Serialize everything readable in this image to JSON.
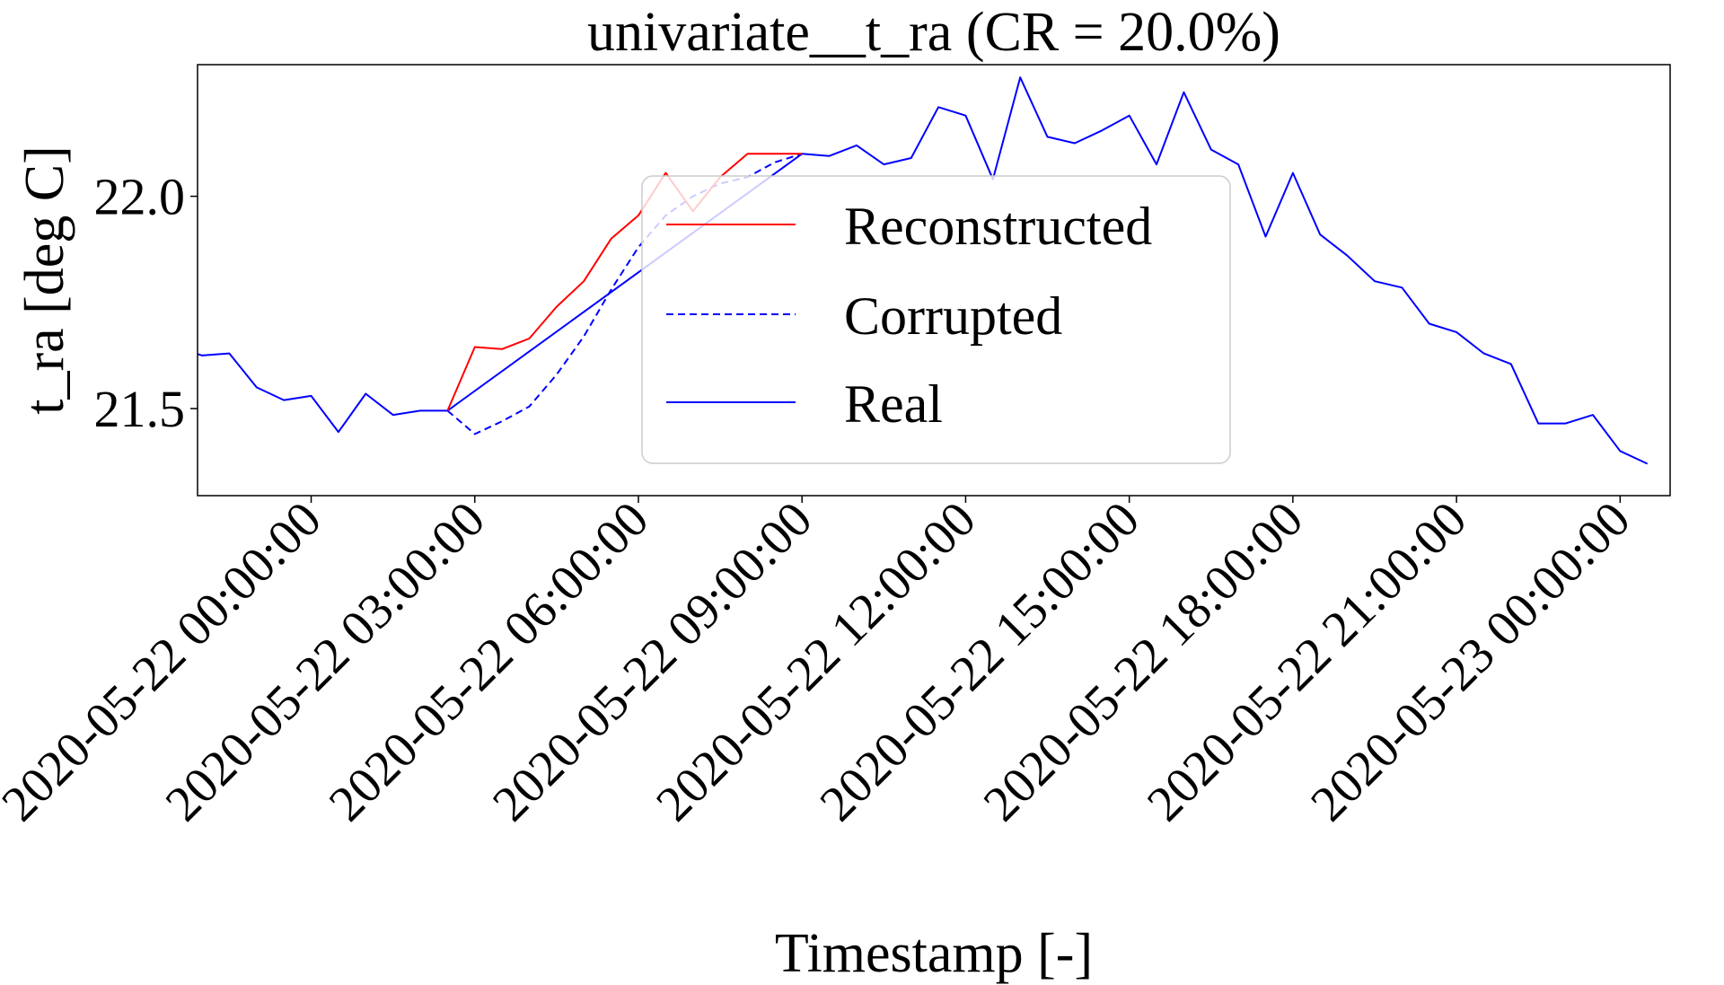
{
  "chart_data": {
    "type": "line",
    "title": "univariate__t_ra  (CR = 20.0%)",
    "xlabel": "Timestamp [-]",
    "ylabel": "t_ra  [deg C]",
    "xlim": [
      "2020-05-21 21:55:00",
      "2020-05-23 00:55:00"
    ],
    "ylim": [
      21.295,
      22.31
    ],
    "x_ticks": [
      "2020-05-22 00:00:00",
      "2020-05-22 03:00:00",
      "2020-05-22 06:00:00",
      "2020-05-22 09:00:00",
      "2020-05-22 12:00:00",
      "2020-05-22 15:00:00",
      "2020-05-22 18:00:00",
      "2020-05-22 21:00:00",
      "2020-05-23 00:00:00"
    ],
    "y_ticks": [
      21.5,
      22.0
    ],
    "y_tick_labels": [
      "21.5",
      "22.0"
    ],
    "grid": false,
    "legend_position": "center",
    "series": [
      {
        "name": "Real",
        "color": "#0000ff",
        "dash": "solid",
        "x": [
          "2020-05-21 21:30:00",
          "2020-05-21 22:00:00",
          "2020-05-21 22:30:00",
          "2020-05-21 23:00:00",
          "2020-05-21 23:30:00",
          "2020-05-22 00:00:00",
          "2020-05-22 00:30:00",
          "2020-05-22 01:00:00",
          "2020-05-22 01:30:00",
          "2020-05-22 02:00:00",
          "2020-05-22 02:30:00",
          "2020-05-22 09:00:00",
          "2020-05-22 09:30:00",
          "2020-05-22 10:00:00",
          "2020-05-22 10:30:00",
          "2020-05-22 11:00:00",
          "2020-05-22 11:30:00",
          "2020-05-22 12:00:00",
          "2020-05-22 12:30:00",
          "2020-05-22 13:00:00",
          "2020-05-22 13:30:00",
          "2020-05-22 14:00:00",
          "2020-05-22 14:30:00",
          "2020-05-22 15:00:00",
          "2020-05-22 15:30:00",
          "2020-05-22 16:00:00",
          "2020-05-22 16:30:00",
          "2020-05-22 17:00:00",
          "2020-05-22 17:30:00",
          "2020-05-22 18:00:00",
          "2020-05-22 18:30:00",
          "2020-05-22 19:00:00",
          "2020-05-22 19:30:00",
          "2020-05-22 20:00:00",
          "2020-05-22 20:30:00",
          "2020-05-22 21:00:00",
          "2020-05-22 21:30:00",
          "2020-05-22 22:00:00",
          "2020-05-22 22:30:00",
          "2020-05-22 23:00:00",
          "2020-05-22 23:30:00",
          "2020-05-23 00:00:00",
          "2020-05-23 00:30:00"
        ],
        "values": [
          21.645,
          21.625,
          21.63,
          21.55,
          21.52,
          21.53,
          21.445,
          21.535,
          21.485,
          21.495,
          21.495,
          22.1,
          22.095,
          22.12,
          22.075,
          22.09,
          22.21,
          22.19,
          22.04,
          22.28,
          22.14,
          22.125,
          22.155,
          22.19,
          22.075,
          22.245,
          22.11,
          22.075,
          21.905,
          22.055,
          21.91,
          21.86,
          21.8,
          21.785,
          21.7,
          21.68,
          21.63,
          21.605,
          21.465,
          21.465,
          21.485,
          21.4,
          21.37
        ]
      },
      {
        "name": "Corrupted",
        "color": "#0000ff",
        "dash": "dashed",
        "x": [
          "2020-05-22 02:30:00",
          "2020-05-22 03:00:00",
          "2020-05-22 03:30:00",
          "2020-05-22 04:00:00",
          "2020-05-22 04:30:00",
          "2020-05-22 05:00:00",
          "2020-05-22 05:30:00",
          "2020-05-22 06:00:00",
          "2020-05-22 06:30:00",
          "2020-05-22 07:00:00",
          "2020-05-22 07:30:00",
          "2020-05-22 08:00:00",
          "2020-05-22 08:30:00",
          "2020-05-22 09:00:00"
        ],
        "values": [
          21.495,
          21.44,
          21.47,
          21.505,
          21.58,
          21.67,
          21.78,
          21.88,
          21.955,
          22.0,
          22.03,
          22.045,
          22.08,
          22.1
        ]
      },
      {
        "name": "Reconstructed",
        "color": "#ff0000",
        "dash": "solid",
        "x": [
          "2020-05-22 02:30:00",
          "2020-05-22 03:00:00",
          "2020-05-22 03:30:00",
          "2020-05-22 04:00:00",
          "2020-05-22 04:30:00",
          "2020-05-22 05:00:00",
          "2020-05-22 05:30:00",
          "2020-05-22 06:00:00",
          "2020-05-22 06:30:00",
          "2020-05-22 07:00:00",
          "2020-05-22 07:30:00",
          "2020-05-22 08:00:00",
          "2020-05-22 08:30:00",
          "2020-05-22 09:00:00"
        ],
        "values": [
          21.495,
          21.645,
          21.64,
          21.665,
          21.74,
          21.8,
          21.9,
          21.955,
          22.055,
          21.965,
          22.045,
          22.1,
          22.1,
          22.1
        ]
      }
    ],
    "legend_order": [
      "Reconstructed",
      "Corrupted",
      "Real"
    ]
  }
}
